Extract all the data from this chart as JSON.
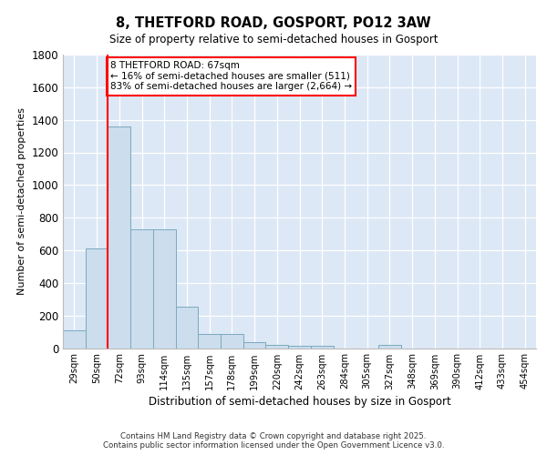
{
  "title_line1": "8, THETFORD ROAD, GOSPORT, PO12 3AW",
  "title_line2": "Size of property relative to semi-detached houses in Gosport",
  "xlabel": "Distribution of semi-detached houses by size in Gosport",
  "ylabel": "Number of semi-detached properties",
  "categories": [
    "29sqm",
    "50sqm",
    "72sqm",
    "93sqm",
    "114sqm",
    "135sqm",
    "157sqm",
    "178sqm",
    "199sqm",
    "220sqm",
    "242sqm",
    "263sqm",
    "284sqm",
    "305sqm",
    "327sqm",
    "348sqm",
    "369sqm",
    "390sqm",
    "412sqm",
    "433sqm",
    "454sqm"
  ],
  "values": [
    110,
    610,
    1360,
    730,
    730,
    255,
    85,
    85,
    35,
    20,
    15,
    15,
    0,
    0,
    20,
    0,
    0,
    0,
    0,
    0,
    0
  ],
  "bar_color": "#ccdded",
  "bar_edge_color": "#7aaabf",
  "red_line_x": 1.5,
  "annotation_text": "8 THETFORD ROAD: 67sqm\n← 16% of semi-detached houses are smaller (511)\n83% of semi-detached houses are larger (2,664) →",
  "ylim": [
    0,
    1800
  ],
  "yticks": [
    0,
    200,
    400,
    600,
    800,
    1000,
    1200,
    1400,
    1600,
    1800
  ],
  "background_color": "#dce8f5",
  "grid_color": "#ffffff",
  "footer_line1": "Contains HM Land Registry data © Crown copyright and database right 2025.",
  "footer_line2": "Contains public sector information licensed under the Open Government Licence v3.0."
}
